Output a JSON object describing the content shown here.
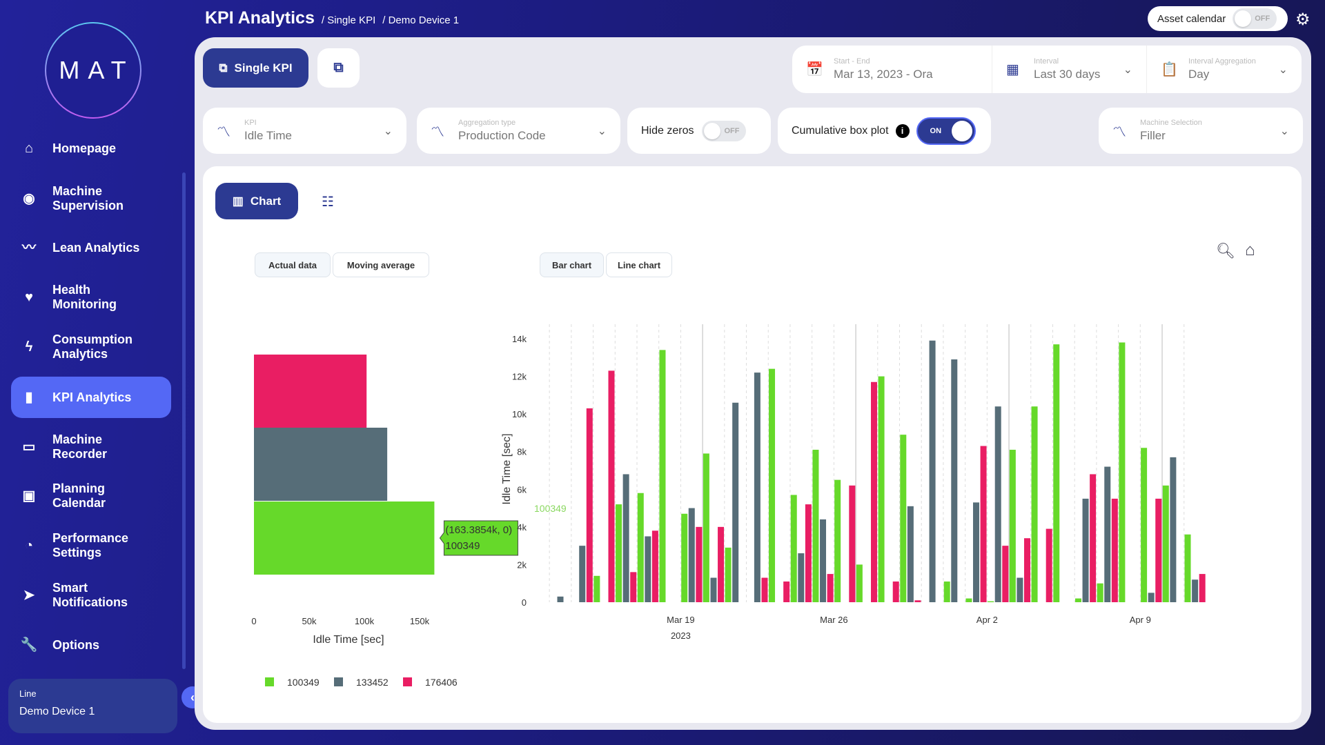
{
  "logo": "MAT",
  "sidebar": {
    "items": [
      {
        "label": "Homepage",
        "icon": "home-icon",
        "glyph": "⌂"
      },
      {
        "label": "Machine Supervision",
        "icon": "eye-icon",
        "glyph": "◉"
      },
      {
        "label": "Lean Analytics",
        "icon": "trend-icon",
        "glyph": "〰"
      },
      {
        "label": "Health Monitoring",
        "icon": "heart-pulse-icon",
        "glyph": "♥"
      },
      {
        "label": "Consumption Analytics",
        "icon": "bolt-icon",
        "glyph": "ϟ"
      },
      {
        "label": "KPI Analytics",
        "icon": "bar-chart-icon",
        "glyph": "▮"
      },
      {
        "label": "Machine Recorder",
        "icon": "recorder-icon",
        "glyph": "▭"
      },
      {
        "label": "Planning Calendar",
        "icon": "calendar-icon",
        "glyph": "▣"
      },
      {
        "label": "Performance Settings",
        "icon": "stopwatch-icon",
        "glyph": "◔"
      },
      {
        "label": "Smart Notifications",
        "icon": "send-icon",
        "glyph": "➤"
      },
      {
        "label": "Options",
        "icon": "wrench-icon",
        "glyph": "🔧"
      }
    ],
    "active": "KPI Analytics",
    "line_label": "Line",
    "line_value": "Demo Device 1"
  },
  "header": {
    "title": "KPI Analytics",
    "breadcrumbs": [
      "/ Single KPI",
      "/ Demo Device 1"
    ],
    "asset_calendar": "Asset calendar",
    "asset_calendar_state": "OFF"
  },
  "modes": {
    "single": "Single KPI"
  },
  "dates": {
    "start_end_label": "Start - End",
    "start_end": "Mar 13, 2023 - Ora",
    "interval_label": "Interval",
    "interval": "Last 30 days",
    "agg_label": "Interval Aggregation",
    "agg": "Day"
  },
  "filters": {
    "kpi_label": "KPI",
    "kpi": "Idle Time",
    "aggtype_label": "Aggregation type",
    "aggtype": "Production Code",
    "hide_zeros": "Hide zeros",
    "hide_zeros_state": "OFF",
    "cumulative": "Cumulative box plot",
    "cumulative_state": "ON",
    "machine_label": "Machine Selection",
    "machine": "Filler"
  },
  "view": {
    "chart": "Chart",
    "actual": "Actual data",
    "moving": "Moving average",
    "bar": "Bar chart",
    "line": "Line chart"
  },
  "colors": {
    "accent": "#2c3a92",
    "green": "#66d92a",
    "gray": "#566d78",
    "pink": "#e91e63"
  },
  "chart_data": [
    {
      "type": "bar",
      "orientation": "horizontal",
      "xlabel": "Idle Time [sec]",
      "xticks": [
        "0",
        "50k",
        "100k",
        "150k"
      ],
      "xlim": [
        0,
        165000
      ],
      "series": [
        {
          "name": "100349",
          "value": 163385
        },
        {
          "name": "133452",
          "value": 120700
        },
        {
          "name": "176406",
          "value": 102000
        }
      ],
      "tooltip": [
        "(163.3854k, 0)",
        "100349"
      ],
      "legend": [
        "100349",
        "133452",
        "176406"
      ],
      "legend_placement": "bottom"
    },
    {
      "type": "bar",
      "ylabel": "Idle Time [sec]",
      "yticks": [
        "0",
        "2k",
        "4k",
        "6k",
        "8k",
        "10k",
        "12k",
        "14k"
      ],
      "ylim": [
        0,
        14500
      ],
      "xticks": [
        "Mar 19",
        "Mar 26",
        "Apr 2",
        "Apr 9"
      ],
      "xtick_year": "2023",
      "hover_label": "100349",
      "categories": [
        "Mar 13",
        "Mar 14",
        "Mar 15",
        "Mar 16",
        "Mar 17",
        "Mar 18",
        "Mar 19",
        "Mar 20",
        "Mar 21",
        "Mar 22",
        "Mar 23",
        "Mar 24",
        "Mar 25",
        "Mar 26",
        "Mar 27",
        "Mar 28",
        "Mar 29",
        "Mar 30",
        "Mar 31",
        "Apr 1",
        "Apr 2",
        "Apr 3",
        "Apr 4",
        "Apr 5",
        "Apr 6",
        "Apr 7",
        "Apr 8",
        "Apr 9",
        "Apr 10",
        "Apr 11"
      ],
      "series": [
        {
          "name": "100349",
          "values": [
            0,
            0,
            1400,
            5200,
            5800,
            13400,
            4700,
            7900,
            2900,
            0,
            12400,
            5700,
            8100,
            6500,
            2000,
            12000,
            8900,
            0,
            1100,
            200,
            50,
            8100,
            10400,
            13700,
            200,
            1000,
            13800,
            8200,
            6200,
            3600
          ]
        },
        {
          "name": "133452",
          "values": [
            300,
            3000,
            0,
            6800,
            3500,
            0,
            5000,
            1300,
            10600,
            12200,
            0,
            2600,
            4400,
            0,
            0,
            0,
            5100,
            13900,
            12900,
            5300,
            10400,
            1300,
            0,
            0,
            5500,
            7200,
            0,
            500,
            7700,
            1200
          ]
        },
        {
          "name": "176406",
          "values": [
            0,
            10300,
            12300,
            1600,
            3800,
            0,
            4000,
            4000,
            0,
            1300,
            1100,
            5200,
            1500,
            6200,
            11700,
            1100,
            100,
            0,
            0,
            8300,
            3000,
            3400,
            3900,
            0,
            6800,
            5500,
            0,
            5500,
            0,
            1500
          ]
        }
      ]
    }
  ]
}
